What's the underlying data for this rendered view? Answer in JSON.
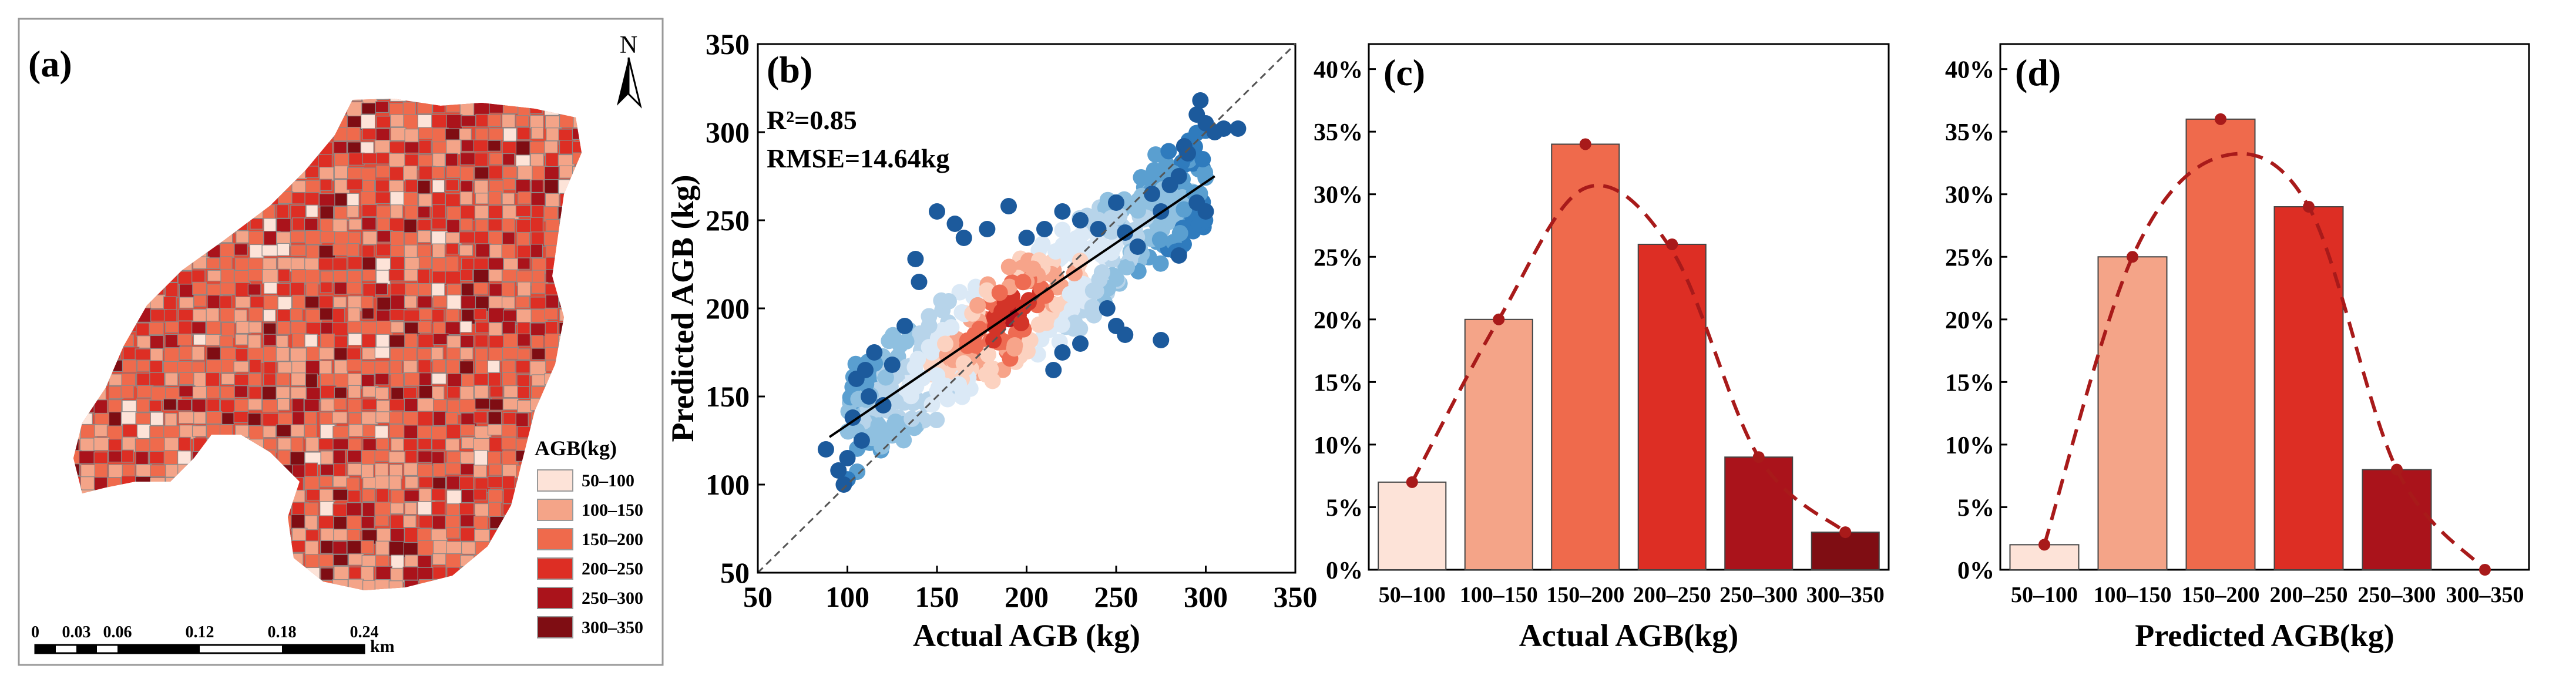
{
  "colors": {
    "c50": "#fde3d8",
    "c100": "#f4a488",
    "c150": "#ef6a4c",
    "c200": "#dd2e24",
    "c250": "#aa131b",
    "c300": "#7f0d13",
    "curve": "#a81a1a",
    "scatter_blue_dark": "#1c5a9c",
    "scatter_red_dark": "#b41621"
  },
  "map": {
    "label": "(a)",
    "north": "N",
    "legend_title": "AGB(kg)",
    "legend": [
      "50–100",
      "100–150",
      "150–200",
      "200–250",
      "250–300",
      "300–350"
    ],
    "scale_ticks": [
      "0",
      "0.03",
      "0.06",
      "0.12",
      "0.18",
      "0.24"
    ],
    "scale_unit": "km"
  },
  "chart_data": [
    {
      "type": "scatter",
      "label": "(b)",
      "xlabel": "Actual AGB (kg)",
      "ylabel": "Predicted AGB (kg)",
      "xlim": [
        50,
        350
      ],
      "ylim": [
        50,
        350
      ],
      "xticks": [
        "50",
        "100",
        "150",
        "200",
        "250",
        "300",
        "350"
      ],
      "yticks": [
        "50",
        "100",
        "150",
        "200",
        "250",
        "300",
        "350"
      ],
      "annotations": [
        "R²=0.85",
        "RMSE=14.64kg"
      ],
      "fit_line": [
        [
          90,
          127
        ],
        [
          305,
          275
        ]
      ],
      "one_to_one": true,
      "outliers": [
        [
          88,
          120
        ],
        [
          95,
          108
        ],
        [
          98,
          100
        ],
        [
          100,
          115
        ],
        [
          103,
          138
        ],
        [
          105,
          160
        ],
        [
          108,
          125
        ],
        [
          112,
          150
        ],
        [
          115,
          175
        ],
        [
          110,
          165
        ],
        [
          125,
          168
        ],
        [
          120,
          145
        ],
        [
          138,
          228
        ],
        [
          140,
          215
        ],
        [
          132,
          190
        ],
        [
          150,
          255
        ],
        [
          160,
          248
        ],
        [
          165,
          240
        ],
        [
          178,
          245
        ],
        [
          190,
          258
        ],
        [
          200,
          240
        ],
        [
          210,
          245
        ],
        [
          220,
          255
        ],
        [
          230,
          250
        ],
        [
          240,
          245
        ],
        [
          250,
          260
        ],
        [
          255,
          243
        ],
        [
          262,
          235
        ],
        [
          270,
          265
        ],
        [
          275,
          255
        ],
        [
          280,
          270
        ],
        [
          285,
          275
        ],
        [
          288,
          292
        ],
        [
          290,
          288
        ],
        [
          295,
          310
        ],
        [
          300,
          305
        ],
        [
          305,
          300
        ],
        [
          310,
          302
        ],
        [
          318,
          302
        ],
        [
          297,
          318
        ],
        [
          250,
          190
        ],
        [
          255,
          185
        ],
        [
          245,
          200
        ],
        [
          275,
          182
        ],
        [
          220,
          175
        ],
        [
          215,
          165
        ],
        [
          230,
          180
        ],
        [
          285,
          230
        ],
        [
          295,
          260
        ],
        [
          300,
          255
        ]
      ]
    },
    {
      "type": "bar",
      "label": "(c)",
      "xlabel": "Actual AGB(kg)",
      "categories": [
        "50–100",
        "100–150",
        "150–200",
        "200–250",
        "250–300",
        "300–350"
      ],
      "values": [
        7,
        20,
        34,
        26,
        9,
        3
      ],
      "ylim": [
        0,
        42
      ],
      "yticks": [
        "0%",
        "5%",
        "10%",
        "15%",
        "20%",
        "25%",
        "30%",
        "35%",
        "40%"
      ],
      "fit_curve": [
        7,
        20,
        30.5,
        25.5,
        9,
        3
      ]
    },
    {
      "type": "bar",
      "label": "(d)",
      "xlabel": "Predicted AGB(kg)",
      "categories": [
        "50–100",
        "100–150",
        "150–200",
        "200–250",
        "250–300",
        "300–350"
      ],
      "values": [
        2,
        25,
        36,
        29,
        8,
        0
      ],
      "ylim": [
        0,
        42
      ],
      "yticks": [
        "0%",
        "5%",
        "10%",
        "15%",
        "20%",
        "25%",
        "30%",
        "35%",
        "40%"
      ],
      "fit_curve": [
        2,
        25,
        33,
        29,
        8,
        0
      ]
    }
  ]
}
